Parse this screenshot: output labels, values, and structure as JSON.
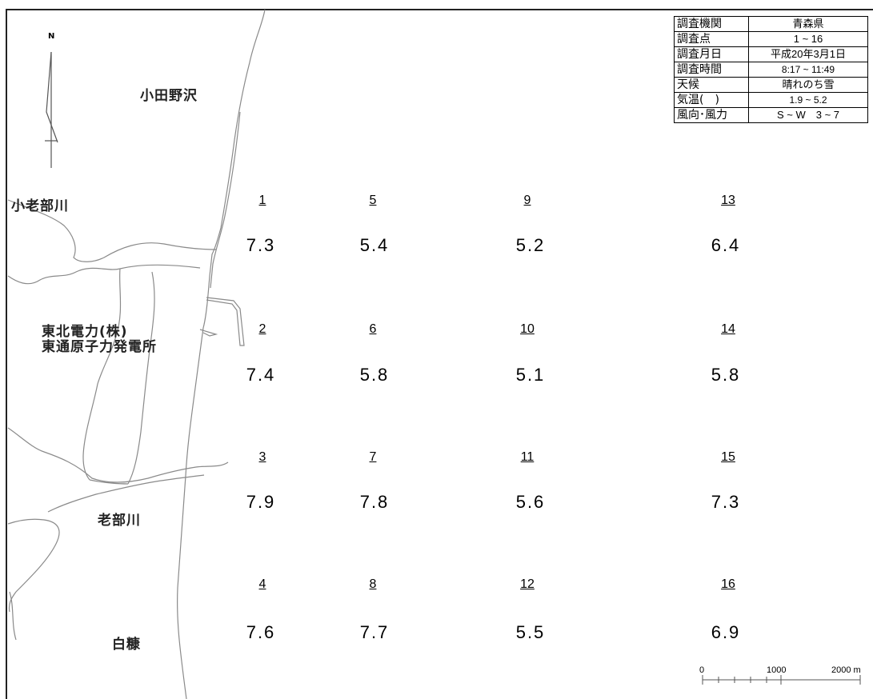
{
  "north": {
    "label": "N"
  },
  "places": {
    "odanosawa": "小田野沢",
    "oibegawa_small": "小老部川",
    "plant_line1": "東北電力(株)",
    "plant_line2": "東通原子力発電所",
    "oibegawa": "老部川",
    "shiranuka": "白糠"
  },
  "info_table": [
    {
      "key": "調査機関",
      "value": "青森県"
    },
    {
      "key": "調査点",
      "value": "1 ~ 16"
    },
    {
      "key": "調査月日",
      "value": "平成20年3月1日"
    },
    {
      "key": "調査時間",
      "value": "8:17 ~ 11:49"
    },
    {
      "key": "天候",
      "value": "晴れのち雪"
    },
    {
      "key": "気温(　)",
      "value": "1.9 ~ 5.2"
    },
    {
      "key": "風向･風力",
      "value": "S ~ W　3 ~ 7"
    }
  ],
  "points": [
    {
      "id": "1",
      "value": "7.3"
    },
    {
      "id": "2",
      "value": "7.4"
    },
    {
      "id": "3",
      "value": "7.9"
    },
    {
      "id": "4",
      "value": "7.6"
    },
    {
      "id": "5",
      "value": "5.4"
    },
    {
      "id": "6",
      "value": "5.8"
    },
    {
      "id": "7",
      "value": "7.8"
    },
    {
      "id": "8",
      "value": "7.7"
    },
    {
      "id": "9",
      "value": "5.2"
    },
    {
      "id": "10",
      "value": "5.1"
    },
    {
      "id": "11",
      "value": "5.6"
    },
    {
      "id": "12",
      "value": "5.5"
    },
    {
      "id": "13",
      "value": "6.4"
    },
    {
      "id": "14",
      "value": "5.8"
    },
    {
      "id": "15",
      "value": "7.3"
    },
    {
      "id": "16",
      "value": "6.9"
    }
  ],
  "scale_bar": {
    "labels": [
      "0",
      "1000",
      "2000 m"
    ]
  }
}
